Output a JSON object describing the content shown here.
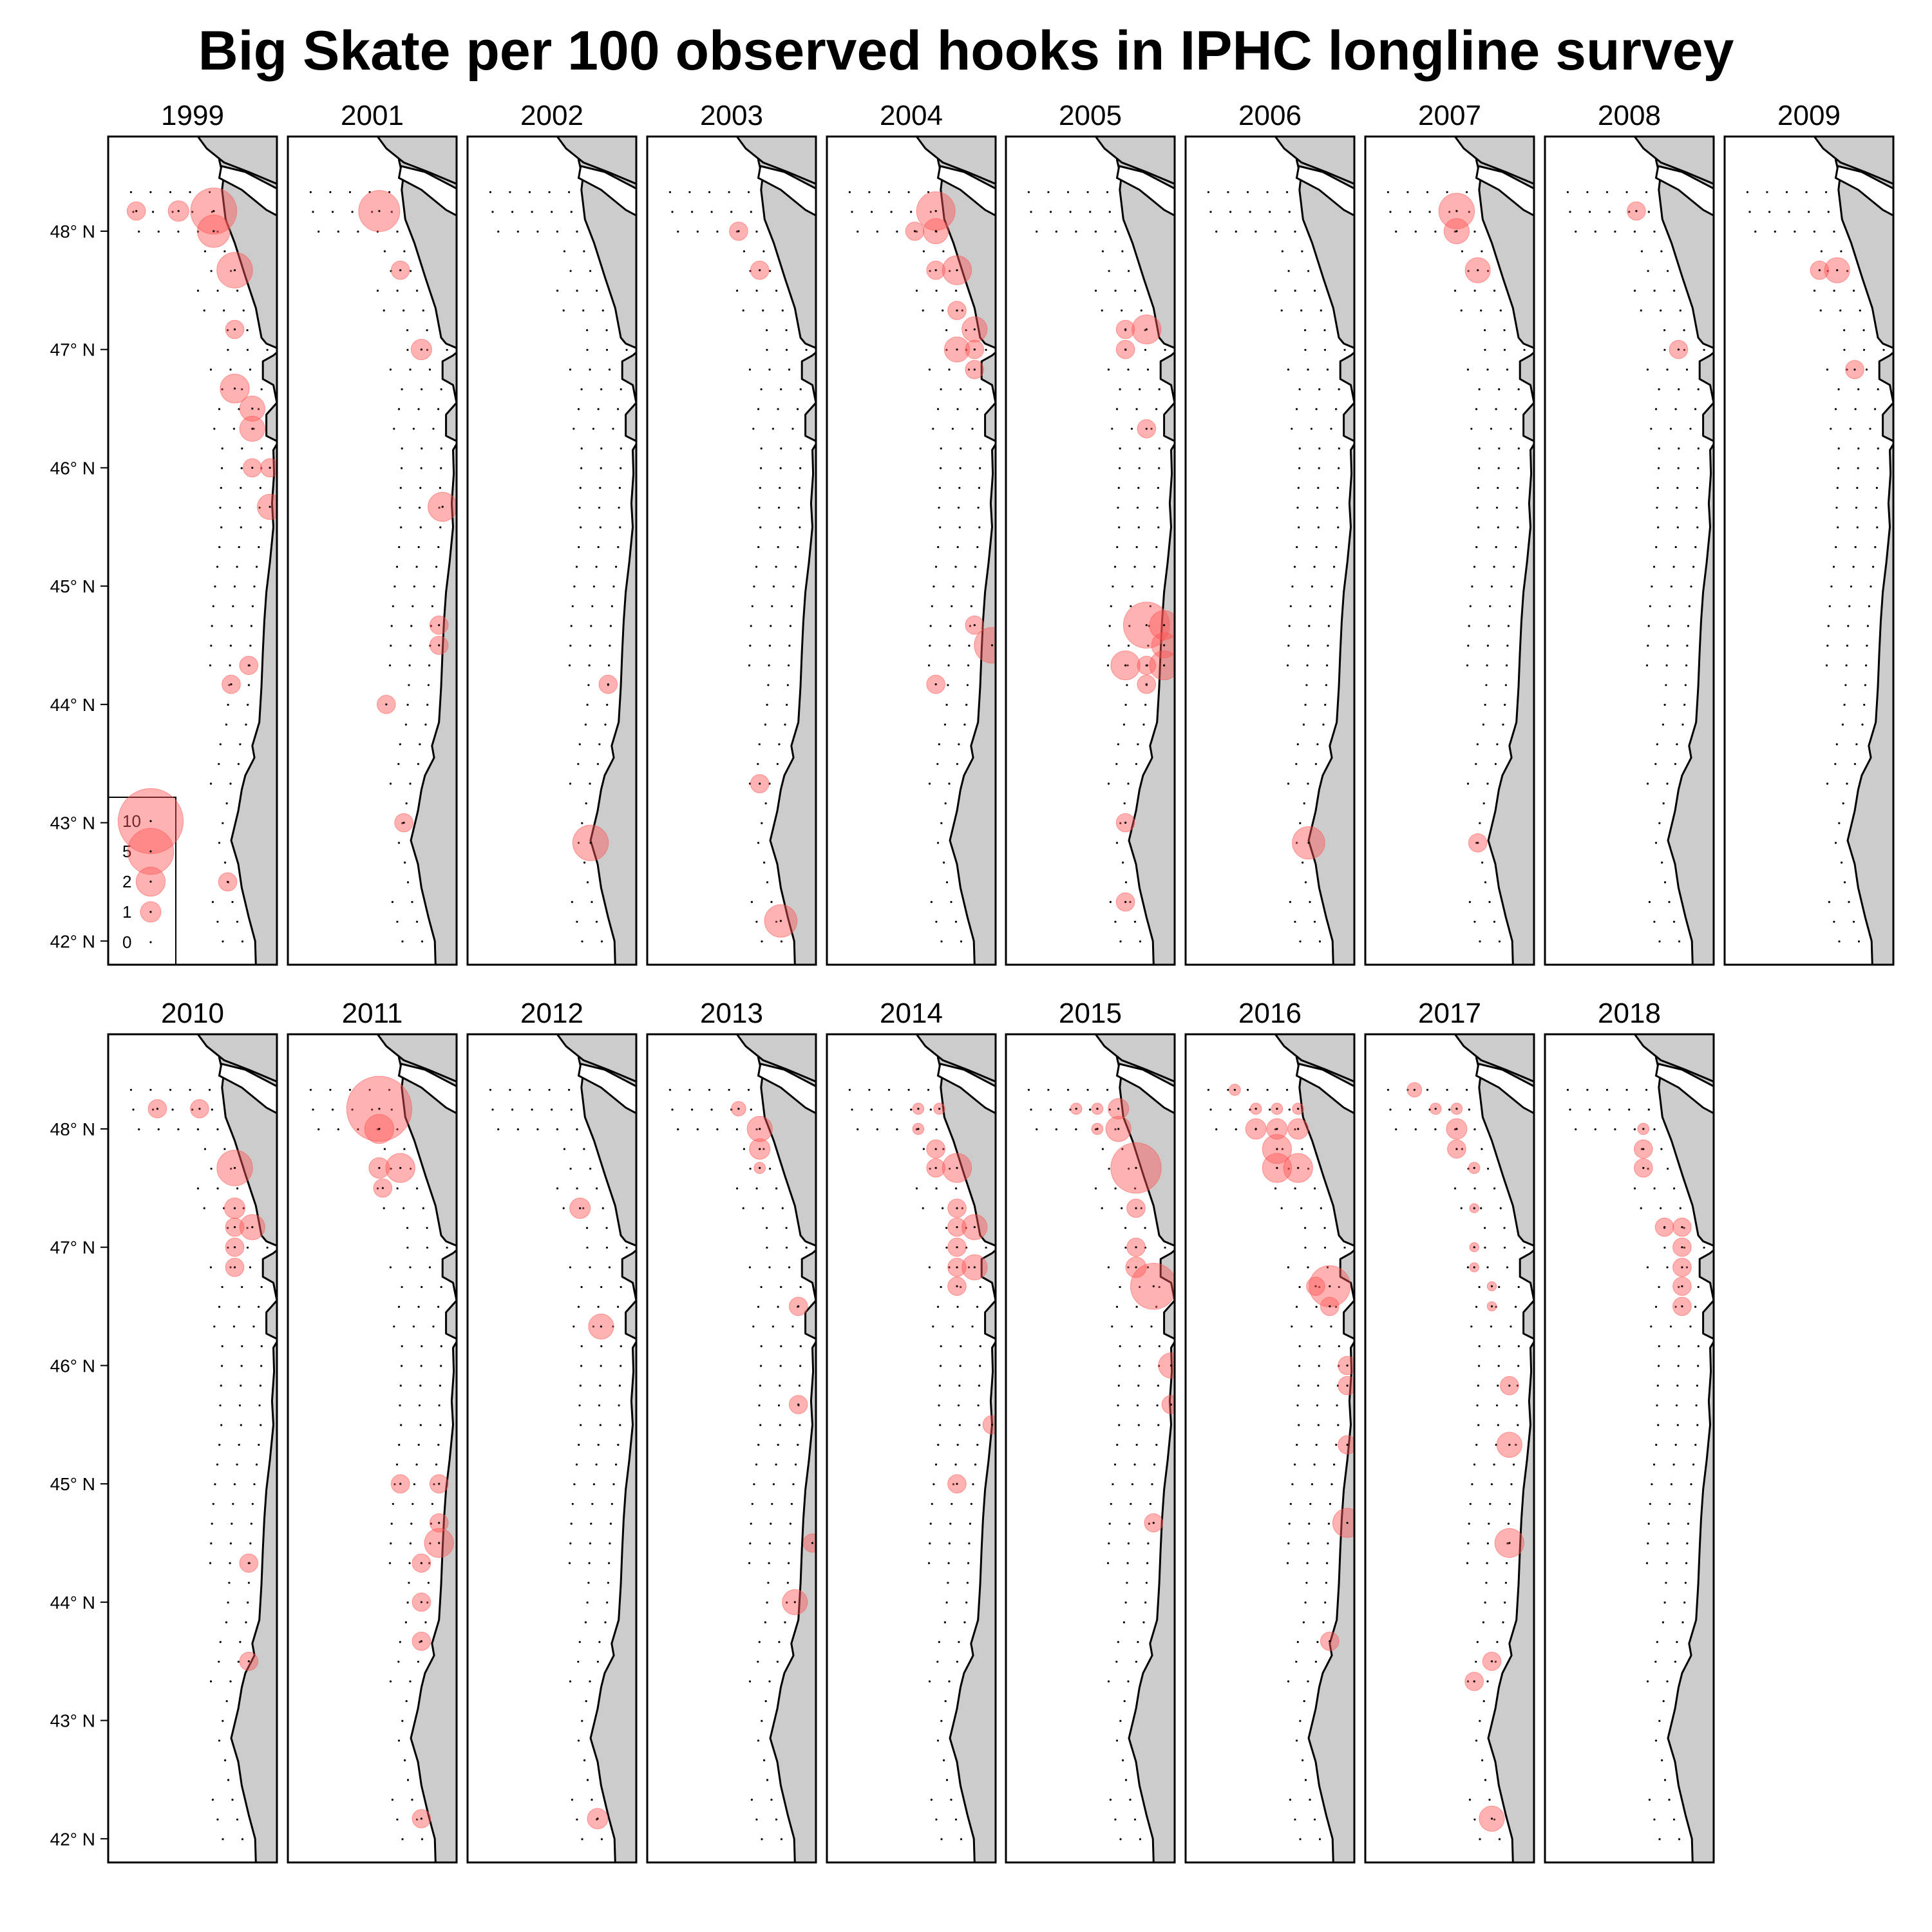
{
  "title": "Big Skate per 100 observed hooks in IPHC longline survey",
  "colors": {
    "bubble": "#ff5555",
    "land": "#cccccc",
    "frame": "#000000"
  },
  "chart_data": {
    "type": "scatter",
    "subtype": "faceted bubble map",
    "title": "Big Skate per 100 observed hooks in IPHC longline survey",
    "ylim": [
      41.8,
      48.8
    ],
    "lat_ticks": [
      48,
      47,
      46,
      45,
      44,
      43,
      42
    ],
    "lat_tick_labels": [
      "48° N",
      "47° N",
      "46° N",
      "45° N",
      "44° N",
      "43° N",
      "42° N"
    ],
    "lon_range": [
      -126.3,
      -123.9
    ],
    "legend": {
      "placement": "bottom-left of first panel",
      "values": [
        10,
        5,
        2,
        1,
        0
      ],
      "labels": [
        "10",
        "5",
        "2",
        "1",
        "0"
      ]
    },
    "panels": [
      {
        "year": "1999",
        "points": [
          [
            -125.9,
            48.17,
            0.8
          ],
          [
            -125.3,
            48.17,
            1
          ],
          [
            -124.8,
            48.17,
            5
          ],
          [
            -124.8,
            48.0,
            2.5
          ],
          [
            -124.5,
            47.67,
            3
          ],
          [
            -124.5,
            47.17,
            0.8
          ],
          [
            -124.5,
            46.67,
            2
          ],
          [
            -124.25,
            46.5,
            1.5
          ],
          [
            -124.25,
            46.33,
            1.5
          ],
          [
            -124.25,
            46.0,
            0.8
          ],
          [
            -124.0,
            46.0,
            0.8
          ],
          [
            -124.0,
            45.67,
            1.5
          ],
          [
            -124.3,
            44.33,
            0.8
          ],
          [
            -124.55,
            44.17,
            0.8
          ],
          [
            -124.6,
            42.5,
            0.8
          ]
        ]
      },
      {
        "year": "2001",
        "points": [
          [
            -125.0,
            48.17,
            4
          ],
          [
            -124.7,
            47.67,
            0.8
          ],
          [
            -124.4,
            47.0,
            1
          ],
          [
            -124.1,
            45.67,
            2
          ],
          [
            -124.15,
            44.67,
            0.8
          ],
          [
            -124.15,
            44.5,
            0.8
          ],
          [
            -124.9,
            44.0,
            0.8
          ],
          [
            -124.65,
            43.0,
            0.8
          ]
        ]
      },
      {
        "year": "2002",
        "points": [
          [
            -124.3,
            44.17,
            0.8
          ],
          [
            -124.55,
            42.83,
            3
          ]
        ]
      },
      {
        "year": "2003",
        "points": [
          [
            -125.0,
            48.0,
            0.8
          ],
          [
            -124.7,
            47.67,
            0.8
          ],
          [
            -124.7,
            43.33,
            0.8
          ],
          [
            -124.4,
            42.17,
            2.5
          ]
        ]
      },
      {
        "year": "2004",
        "points": [
          [
            -124.75,
            48.17,
            3.5
          ],
          [
            -125.05,
            48.0,
            0.8
          ],
          [
            -124.75,
            48.0,
            1.5
          ],
          [
            -124.75,
            47.67,
            0.8
          ],
          [
            -124.45,
            47.67,
            2
          ],
          [
            -124.45,
            47.33,
            0.8
          ],
          [
            -124.2,
            47.17,
            1.5
          ],
          [
            -124.45,
            47.0,
            1.5
          ],
          [
            -124.2,
            47.0,
            0.8
          ],
          [
            -124.2,
            46.83,
            0.8
          ],
          [
            -124.2,
            44.67,
            0.8
          ],
          [
            -123.95,
            44.5,
            3
          ],
          [
            -124.75,
            44.17,
            0.8
          ]
        ]
      },
      {
        "year": "2005",
        "points": [
          [
            -124.6,
            47.17,
            0.8
          ],
          [
            -124.3,
            47.17,
            2
          ],
          [
            -124.6,
            47.0,
            0.8
          ],
          [
            -124.3,
            46.33,
            0.8
          ],
          [
            -124.3,
            44.67,
            5
          ],
          [
            -124.05,
            44.67,
            2
          ],
          [
            -124.05,
            44.5,
            1.5
          ],
          [
            -124.6,
            44.33,
            2
          ],
          [
            -124.3,
            44.33,
            0.8
          ],
          [
            -124.05,
            44.33,
            2
          ],
          [
            -124.3,
            44.17,
            0.8
          ],
          [
            -124.6,
            43.0,
            0.8
          ],
          [
            -124.6,
            42.33,
            0.8
          ]
        ]
      },
      {
        "year": "2006",
        "points": [
          [
            -124.55,
            42.83,
            2.5
          ]
        ]
      },
      {
        "year": "2007",
        "points": [
          [
            -125.0,
            48.17,
            3
          ],
          [
            -125.0,
            48.0,
            1.5
          ],
          [
            -124.7,
            47.67,
            1.5
          ],
          [
            -124.7,
            42.83,
            0.8
          ]
        ]
      },
      {
        "year": "2008",
        "points": [
          [
            -125.0,
            48.17,
            0.8
          ],
          [
            -124.4,
            47.0,
            0.8
          ]
        ]
      },
      {
        "year": "2009",
        "points": [
          [
            -124.95,
            47.67,
            0.8
          ],
          [
            -124.7,
            47.67,
            1.5
          ],
          [
            -124.45,
            46.83,
            0.8
          ]
        ]
      },
      {
        "year": "2010",
        "points": [
          [
            -125.6,
            48.17,
            0.8
          ],
          [
            -125.0,
            48.17,
            0.8
          ],
          [
            -124.5,
            47.67,
            3
          ],
          [
            -124.5,
            47.33,
            1
          ],
          [
            -124.5,
            47.17,
            0.8
          ],
          [
            -124.25,
            47.17,
            1.5
          ],
          [
            -124.5,
            47.0,
            0.8
          ],
          [
            -124.5,
            46.83,
            0.8
          ],
          [
            -124.3,
            44.33,
            0.8
          ],
          [
            -124.3,
            43.5,
            0.8
          ]
        ]
      },
      {
        "year": "2011",
        "points": [
          [
            -125.0,
            48.17,
            10
          ],
          [
            -125.0,
            48.0,
            2
          ],
          [
            -125.0,
            47.67,
            1
          ],
          [
            -124.7,
            47.67,
            2
          ],
          [
            -124.95,
            47.5,
            0.8
          ],
          [
            -124.7,
            45.0,
            0.8
          ],
          [
            -124.15,
            45.0,
            0.8
          ],
          [
            -124.15,
            44.67,
            0.8
          ],
          [
            -124.15,
            44.5,
            2
          ],
          [
            -124.4,
            44.33,
            0.8
          ],
          [
            -124.4,
            44.0,
            0.8
          ],
          [
            -124.4,
            43.67,
            0.8
          ],
          [
            -124.4,
            42.17,
            0.8
          ]
        ]
      },
      {
        "year": "2012",
        "points": [
          [
            -124.7,
            47.33,
            1
          ],
          [
            -124.4,
            46.33,
            1.5
          ],
          [
            -124.45,
            42.17,
            1
          ]
        ]
      },
      {
        "year": "2013",
        "points": [
          [
            -125.0,
            48.17,
            0.5
          ],
          [
            -124.7,
            48.0,
            1.5
          ],
          [
            -124.7,
            47.83,
            1
          ],
          [
            -124.7,
            47.67,
            0.3
          ],
          [
            -124.15,
            46.5,
            0.8
          ],
          [
            -124.15,
            45.67,
            0.8
          ],
          [
            -123.95,
            44.5,
            0.8
          ],
          [
            -124.2,
            44.0,
            1.5
          ]
        ]
      },
      {
        "year": "2014",
        "points": [
          [
            -125.0,
            48.17,
            0.3
          ],
          [
            -124.7,
            48.17,
            0.3
          ],
          [
            -125.0,
            48.0,
            0.3
          ],
          [
            -124.75,
            47.83,
            0.8
          ],
          [
            -124.75,
            47.67,
            0.8
          ],
          [
            -124.45,
            47.67,
            2
          ],
          [
            -124.45,
            47.33,
            0.8
          ],
          [
            -124.45,
            47.17,
            0.8
          ],
          [
            -124.2,
            47.17,
            1.5
          ],
          [
            -124.45,
            47.0,
            0.8
          ],
          [
            -124.45,
            46.83,
            0.8
          ],
          [
            -124.2,
            46.83,
            1.5
          ],
          [
            -124.45,
            46.67,
            0.8
          ],
          [
            -123.95,
            45.5,
            0.8
          ],
          [
            -124.45,
            45.0,
            0.8
          ]
        ]
      },
      {
        "year": "2015",
        "points": [
          [
            -125.3,
            48.17,
            0.3
          ],
          [
            -125.0,
            48.17,
            0.3
          ],
          [
            -124.7,
            48.17,
            1
          ],
          [
            -125.0,
            48.0,
            0.3
          ],
          [
            -124.7,
            48.0,
            1.5
          ],
          [
            -124.45,
            47.67,
            6
          ],
          [
            -124.45,
            47.33,
            0.8
          ],
          [
            -124.45,
            47.0,
            0.8
          ],
          [
            -124.45,
            46.83,
            1
          ],
          [
            -124.2,
            46.67,
            5
          ],
          [
            -123.95,
            46.0,
            1.5
          ],
          [
            -123.95,
            45.67,
            0.8
          ],
          [
            -124.2,
            44.67,
            0.8
          ]
        ]
      },
      {
        "year": "2016",
        "points": [
          [
            -125.6,
            48.33,
            0.3
          ],
          [
            -125.3,
            48.17,
            0.3
          ],
          [
            -125.0,
            48.17,
            0.3
          ],
          [
            -124.7,
            48.17,
            0.3
          ],
          [
            -125.3,
            48.0,
            1
          ],
          [
            -125.0,
            48.0,
            1
          ],
          [
            -124.7,
            48.0,
            1
          ],
          [
            -125.0,
            47.83,
            2
          ],
          [
            -125.0,
            47.67,
            2
          ],
          [
            -124.7,
            47.67,
            2
          ],
          [
            -124.45,
            46.67,
            0.8
          ],
          [
            -124.25,
            46.67,
            4
          ],
          [
            -124.25,
            46.5,
            0.8
          ],
          [
            -124.0,
            46.0,
            0.8
          ],
          [
            -124.0,
            45.83,
            0.8
          ],
          [
            -124.0,
            45.33,
            0.8
          ],
          [
            -124.0,
            44.67,
            2
          ],
          [
            -124.25,
            43.67,
            0.8
          ]
        ]
      },
      {
        "year": "2017",
        "points": [
          [
            -125.6,
            48.33,
            0.5
          ],
          [
            -125.3,
            48.17,
            0.3
          ],
          [
            -125.0,
            48.17,
            0.3
          ],
          [
            -125.0,
            48.0,
            1
          ],
          [
            -125.0,
            47.83,
            0.8
          ],
          [
            -124.75,
            47.67,
            0.3
          ],
          [
            -124.75,
            47.33,
            0.2
          ],
          [
            -124.75,
            47.0,
            0.2
          ],
          [
            -124.75,
            46.83,
            0.2
          ],
          [
            -124.5,
            46.67,
            0.2
          ],
          [
            -124.5,
            46.5,
            0.2
          ],
          [
            -124.25,
            45.83,
            0.8
          ],
          [
            -124.25,
            45.33,
            1.5
          ],
          [
            -124.25,
            44.5,
            2
          ],
          [
            -124.5,
            43.5,
            0.8
          ],
          [
            -124.75,
            43.33,
            0.8
          ],
          [
            -124.5,
            42.17,
            1.5
          ]
        ]
      },
      {
        "year": "2018",
        "points": [
          [
            -124.9,
            48.0,
            0.3
          ],
          [
            -124.9,
            47.83,
            0.8
          ],
          [
            -124.9,
            47.67,
            0.8
          ],
          [
            -124.6,
            47.17,
            0.8
          ],
          [
            -124.35,
            47.17,
            0.8
          ],
          [
            -124.35,
            47.0,
            0.8
          ],
          [
            -124.35,
            46.83,
            0.8
          ],
          [
            -124.35,
            46.67,
            0.8
          ],
          [
            -124.35,
            46.5,
            0.8
          ]
        ]
      }
    ]
  }
}
